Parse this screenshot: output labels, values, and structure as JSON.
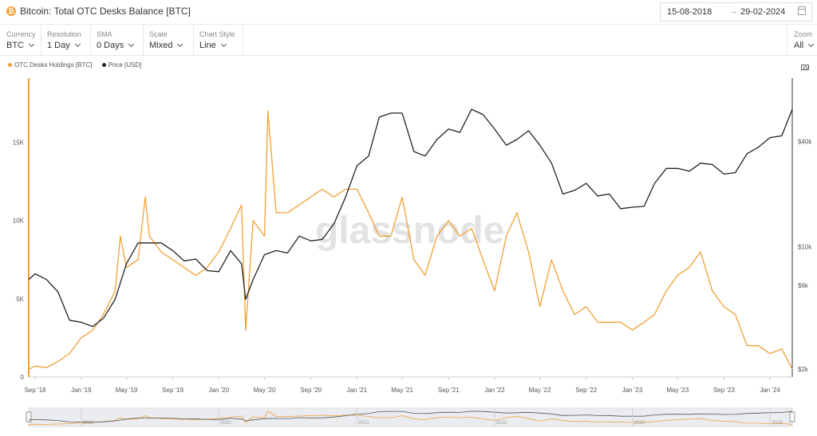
{
  "header": {
    "logo_glyph": "₿",
    "title": "Bitcoin: Total OTC Desks Balance [BTC]",
    "date_from": "15-08-2018",
    "date_arrow": "→",
    "date_to": "29-02-2024"
  },
  "toolbar": [
    {
      "label": "Currency",
      "value": "BTC"
    },
    {
      "label": "Resolution",
      "value": "1 Day"
    },
    {
      "label": "SMA",
      "value": "0 Days"
    },
    {
      "label": "Scale",
      "value": "Mixed"
    },
    {
      "label": "Chart Style",
      "value": "Line"
    }
  ],
  "zoom": {
    "label": "Zoom",
    "value": "All"
  },
  "watermark": "glassnode",
  "colors": {
    "holdings": "#f0a035",
    "price": "#222222"
  },
  "chart_data": {
    "type": "line",
    "title": "Bitcoin: Total OTC Desks Balance [BTC]",
    "x_ticks": [
      "Sep '18",
      "Jan '19",
      "May '19",
      "Sep '19",
      "Jan '20",
      "May '20",
      "Sep '20",
      "Jan '21",
      "May '21",
      "Sep '21",
      "Jan '22",
      "May '22",
      "Sep '22",
      "Jan '23",
      "May '23",
      "Sep '23",
      "Jan '24"
    ],
    "y_left": {
      "ticks": [
        0,
        5000,
        10000,
        15000
      ],
      "tick_labels": [
        "0",
        "5K",
        "10K",
        "15K"
      ],
      "range": [
        0,
        19000
      ]
    },
    "y_right": {
      "scale": "log",
      "ticks": [
        2000,
        6000,
        10000,
        40000
      ],
      "tick_labels": [
        "$2k",
        "$6k",
        "$10k",
        "$40k"
      ],
      "range": [
        1800,
        90000
      ]
    },
    "legend_position": "top-left",
    "navigator_years": [
      "2019",
      "2020",
      "2021",
      "2022",
      "2023",
      "2024"
    ],
    "series": [
      {
        "name": "OTC Desks Holdings [BTC]",
        "axis": "left",
        "color": "#f0a035",
        "x": [
          "2018-08-15",
          "2018-09-01",
          "2018-10-01",
          "2018-11-01",
          "2018-12-01",
          "2019-01-01",
          "2019-02-01",
          "2019-03-01",
          "2019-04-01",
          "2019-04-15",
          "2019-05-01",
          "2019-06-01",
          "2019-06-20",
          "2019-07-01",
          "2019-08-01",
          "2019-09-01",
          "2019-10-01",
          "2019-11-01",
          "2019-12-01",
          "2020-01-01",
          "2020-02-01",
          "2020-03-01",
          "2020-03-12",
          "2020-04-01",
          "2020-05-01",
          "2020-05-10",
          "2020-06-01",
          "2020-07-01",
          "2020-08-01",
          "2020-09-01",
          "2020-10-01",
          "2020-11-01",
          "2020-12-01",
          "2021-01-01",
          "2021-02-01",
          "2021-03-01",
          "2021-04-01",
          "2021-05-01",
          "2021-06-01",
          "2021-07-01",
          "2021-08-01",
          "2021-09-01",
          "2021-10-01",
          "2021-11-01",
          "2021-12-01",
          "2022-01-01",
          "2022-02-01",
          "2022-03-01",
          "2022-04-01",
          "2022-05-01",
          "2022-06-01",
          "2022-07-01",
          "2022-08-01",
          "2022-09-01",
          "2022-10-01",
          "2022-11-01",
          "2022-12-01",
          "2023-01-01",
          "2023-02-01",
          "2023-03-01",
          "2023-04-01",
          "2023-05-01",
          "2023-06-01",
          "2023-07-01",
          "2023-08-01",
          "2023-09-01",
          "2023-10-01",
          "2023-11-01",
          "2023-12-01",
          "2024-01-01",
          "2024-02-01",
          "2024-02-29"
        ],
        "values": [
          500,
          700,
          600,
          1000,
          1500,
          2500,
          3000,
          4000,
          5500,
          9000,
          7000,
          7500,
          11500,
          9000,
          8000,
          7500,
          7000,
          6500,
          7000,
          8000,
          9500,
          11000,
          3000,
          10000,
          9000,
          17000,
          10500,
          10500,
          11000,
          11500,
          12000,
          11500,
          12000,
          12000,
          10500,
          9000,
          9000,
          11500,
          7500,
          6500,
          9000,
          10000,
          9000,
          9500,
          7500,
          5500,
          9000,
          10500,
          8000,
          4500,
          7500,
          5500,
          4000,
          4500,
          3500,
          3500,
          3500,
          3000,
          3500,
          4000,
          5500,
          6500,
          7000,
          8000,
          5500,
          4500,
          4000,
          2000,
          2000,
          1500,
          1800,
          500
        ]
      },
      {
        "name": "Price [USD]",
        "axis": "right",
        "color": "#222222",
        "x": [
          "2018-08-15",
          "2018-09-01",
          "2018-10-01",
          "2018-11-01",
          "2018-12-01",
          "2019-01-01",
          "2019-02-01",
          "2019-03-01",
          "2019-04-01",
          "2019-05-01",
          "2019-06-01",
          "2019-07-01",
          "2019-08-01",
          "2019-09-01",
          "2019-10-01",
          "2019-11-01",
          "2019-12-01",
          "2020-01-01",
          "2020-02-01",
          "2020-03-01",
          "2020-03-12",
          "2020-04-01",
          "2020-05-01",
          "2020-06-01",
          "2020-07-01",
          "2020-08-01",
          "2020-09-01",
          "2020-10-01",
          "2020-11-01",
          "2020-12-01",
          "2021-01-01",
          "2021-02-01",
          "2021-03-01",
          "2021-04-01",
          "2021-05-01",
          "2021-06-01",
          "2021-07-01",
          "2021-08-01",
          "2021-09-01",
          "2021-10-01",
          "2021-11-01",
          "2021-12-01",
          "2022-01-01",
          "2022-02-01",
          "2022-03-01",
          "2022-04-01",
          "2022-05-01",
          "2022-06-01",
          "2022-07-01",
          "2022-08-01",
          "2022-09-01",
          "2022-10-01",
          "2022-11-01",
          "2022-12-01",
          "2023-01-01",
          "2023-02-01",
          "2023-03-01",
          "2023-04-01",
          "2023-05-01",
          "2023-06-01",
          "2023-07-01",
          "2023-08-01",
          "2023-09-01",
          "2023-10-01",
          "2023-11-01",
          "2023-12-01",
          "2024-01-01",
          "2024-02-01",
          "2024-02-29"
        ],
        "values": [
          6500,
          7000,
          6500,
          5500,
          3800,
          3700,
          3500,
          3900,
          5000,
          8000,
          10500,
          10500,
          10500,
          9500,
          8300,
          8500,
          7300,
          7200,
          9500,
          8000,
          5000,
          6500,
          9000,
          9500,
          9200,
          11500,
          10800,
          11000,
          13500,
          19000,
          29000,
          33000,
          55000,
          58000,
          58000,
          35000,
          33000,
          41000,
          47000,
          45000,
          61000,
          57000,
          47000,
          38000,
          41000,
          46000,
          38000,
          30000,
          20000,
          21000,
          23000,
          19500,
          20000,
          16500,
          16800,
          17000,
          23000,
          28000,
          28000,
          27000,
          30000,
          29500,
          26000,
          26500,
          34000,
          37000,
          42000,
          43000,
          61000
        ]
      }
    ]
  }
}
